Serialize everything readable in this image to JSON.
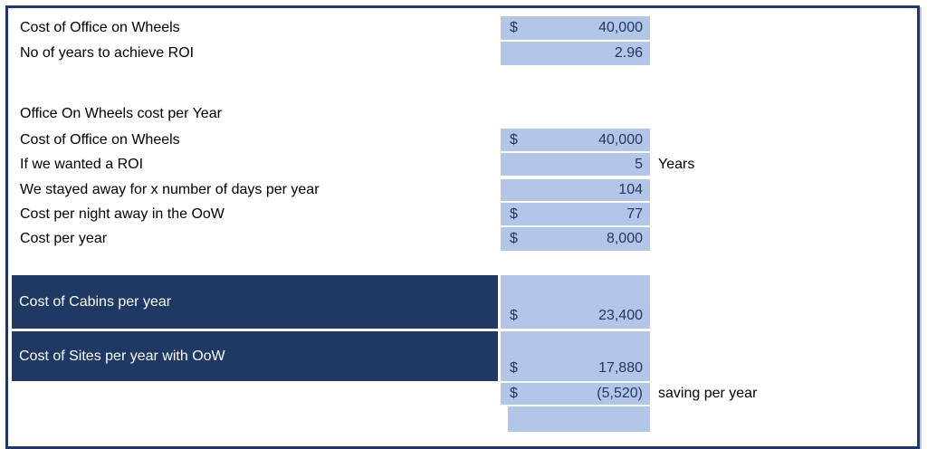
{
  "colors": {
    "navy": "#1F3864",
    "cell_blue": "#B4C6E7",
    "value_text": "#1F3864",
    "label_text": "#000000",
    "bar_text": "#FFFFFF"
  },
  "summary": {
    "rows": [
      {
        "label": "Cost of Office on Wheels",
        "currency": "$",
        "value": "40,000"
      },
      {
        "label": "No of years to achieve ROI",
        "currency": "",
        "value": "2.96"
      }
    ]
  },
  "per_year": {
    "header": "Office On Wheels cost per Year",
    "rows": [
      {
        "label": "Cost of Office on Wheels",
        "currency": "$",
        "value": "40,000",
        "suffix": ""
      },
      {
        "label": "If we wanted a ROI",
        "currency": "",
        "value": "5",
        "suffix": "Years"
      },
      {
        "label": "We stayed away for x number of days per year",
        "currency": "",
        "value": "104",
        "suffix": ""
      },
      {
        "label": "Cost per night away in the OoW",
        "currency": "$",
        "value": "77",
        "suffix": ""
      },
      {
        "label": "Cost per year",
        "currency": "$",
        "value": "8,000",
        "suffix": ""
      }
    ]
  },
  "comparison": {
    "rows": [
      {
        "label": "Cost of Cabins per year",
        "currency": "$",
        "value": "23,400"
      },
      {
        "label": "Cost of Sites per year with OoW",
        "currency": "$",
        "value": "17,880"
      }
    ],
    "saving_row": {
      "currency": "$",
      "value": "(5,520)",
      "suffix": "saving per year"
    },
    "empty_cell": ""
  }
}
